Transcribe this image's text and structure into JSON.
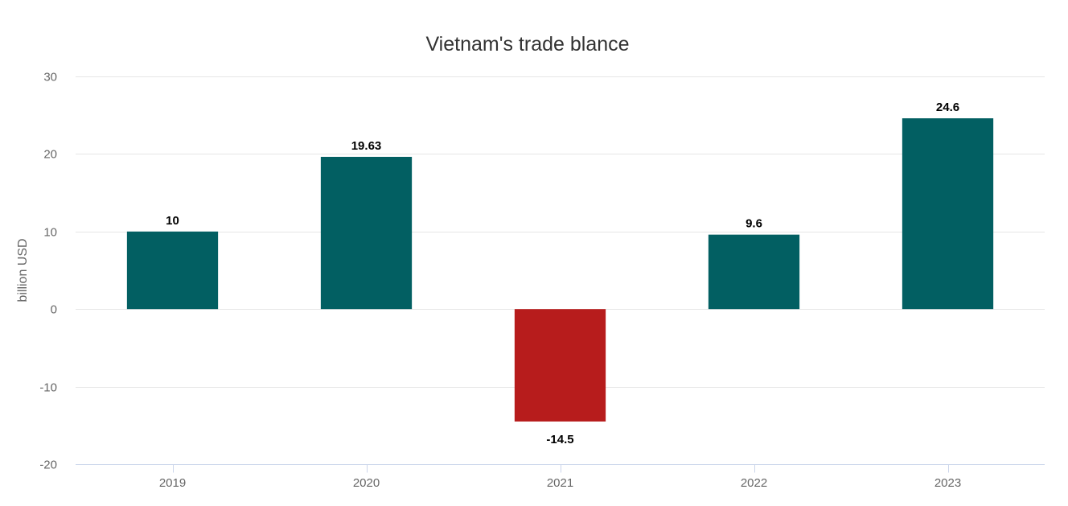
{
  "chart_data": {
    "type": "bar",
    "title": "Vietnam's trade blance",
    "xlabel": "",
    "ylabel": "billion USD",
    "categories": [
      "2019",
      "2020",
      "2021",
      "2022",
      "2023"
    ],
    "values": [
      10,
      19.63,
      -14.5,
      9.6,
      24.6
    ],
    "data_labels": [
      "10",
      "19.63",
      "-14.5",
      "9.6",
      "24.6"
    ],
    "ylim": [
      -20,
      30
    ],
    "yticks": [
      30,
      20,
      10,
      0,
      -10,
      -20
    ],
    "grid": true,
    "legend": "none",
    "colors": {
      "positive": "#025f62",
      "negative": "#b71c1c",
      "grid": "#e6e6e6",
      "axis": "#ccd6eb"
    }
  }
}
